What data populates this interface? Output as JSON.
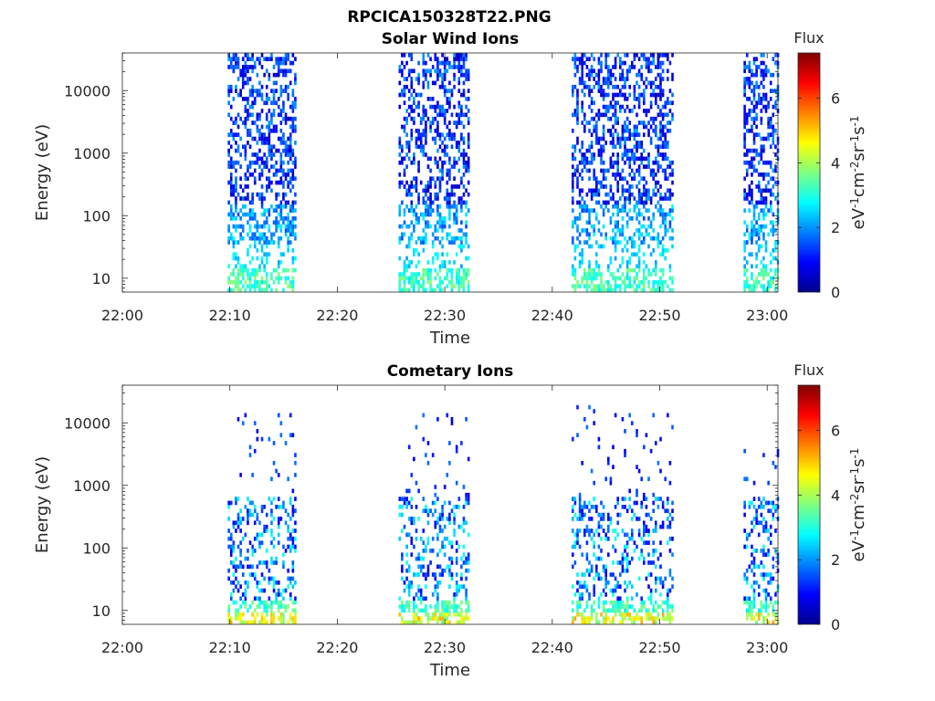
{
  "figure_title": "RPCICA150328T22.PNG",
  "colormap": [
    "#00008f",
    "#0000ff",
    "#0080ff",
    "#00ffff",
    "#80ff80",
    "#ffff00",
    "#ff8000",
    "#ff0000",
    "#800000"
  ],
  "chart_data": [
    {
      "type": "heatmap",
      "title": "Solar Wind Ions",
      "xlabel": "Time",
      "ylabel": "Energy (eV)",
      "x_unit": "minutes after 22:00",
      "x_range": [
        0,
        61
      ],
      "x_ticks": [
        0,
        10,
        20,
        30,
        40,
        50,
        60
      ],
      "x_tick_labels": [
        "22:00",
        "22:10",
        "22:20",
        "22:30",
        "22:40",
        "22:50",
        "23:00"
      ],
      "y_scale": "log",
      "y_range": [
        6,
        40000
      ],
      "y_ticks": [
        10,
        100,
        1000,
        10000
      ],
      "y_tick_labels": [
        "10",
        "100",
        "1000",
        "10000"
      ],
      "colorbar": {
        "title": "Flux",
        "label": "eV-1cm-2sr-1s-1",
        "range": [
          0,
          7.4
        ],
        "ticks": [
          0,
          2,
          4,
          6
        ],
        "tick_labels": [
          "0",
          "2",
          "4",
          "6"
        ]
      },
      "bursts": [
        {
          "start": 9.8,
          "end": 16.0,
          "e_max": 40000
        },
        {
          "start": 25.7,
          "end": 32.2,
          "e_max": 40000
        },
        {
          "start": 41.8,
          "end": 51.2,
          "e_max": 40000
        },
        {
          "start": 57.8,
          "end": 61.0,
          "e_max": 40000
        }
      ]
    },
    {
      "type": "heatmap",
      "title": "Cometary Ions",
      "xlabel": "Time",
      "ylabel": "Energy (eV)",
      "x_unit": "minutes after 22:00",
      "x_range": [
        0,
        61
      ],
      "x_ticks": [
        0,
        10,
        20,
        30,
        40,
        50,
        60
      ],
      "x_tick_labels": [
        "22:00",
        "22:10",
        "22:20",
        "22:30",
        "22:40",
        "22:50",
        "23:00"
      ],
      "y_scale": "log",
      "y_range": [
        6,
        40000
      ],
      "y_ticks": [
        10,
        100,
        1000,
        10000
      ],
      "y_tick_labels": [
        "10",
        "100",
        "1000",
        "10000"
      ],
      "colorbar": {
        "title": "Flux",
        "label": "eV-1cm-2sr-1s-1",
        "range": [
          0,
          7.4
        ],
        "ticks": [
          0,
          2,
          4,
          6
        ],
        "tick_labels": [
          "0",
          "2",
          "4",
          "6"
        ]
      },
      "bursts": [
        {
          "start": 9.8,
          "end": 16.0,
          "e_max": 15000
        },
        {
          "start": 25.7,
          "end": 32.2,
          "e_max": 15000
        },
        {
          "start": 41.8,
          "end": 51.2,
          "e_max": 18000
        },
        {
          "start": 57.8,
          "end": 61.0,
          "e_max": 4000
        }
      ]
    }
  ]
}
